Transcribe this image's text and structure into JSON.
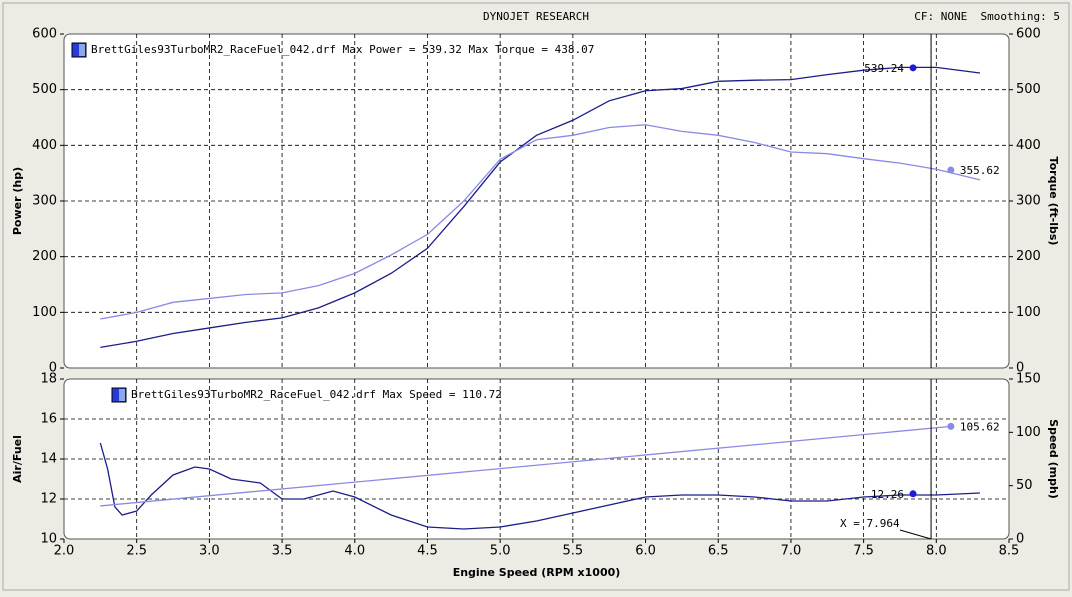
{
  "header": {
    "title": "DYNOJET RESEARCH",
    "settings": "CF: NONE  Smoothing: 5"
  },
  "chart_data": [
    {
      "type": "line",
      "legend_text": "BrettGiles93TurboMR2_RaceFuel_042.drf Max Power = 539.32 Max Torque = 438.07",
      "ylabel": "Power (hp)",
      "y2label": "Torque (ft-lbs)",
      "xlim": [
        2.0,
        8.5
      ],
      "ylim": [
        0,
        600
      ],
      "yticks": [
        0,
        100,
        200,
        300,
        400,
        500,
        600
      ],
      "y2lim": [
        0,
        600
      ],
      "y2ticks": [
        0,
        100,
        200,
        300,
        400,
        500,
        600
      ],
      "grid": true,
      "x": [
        2.25,
        2.5,
        2.75,
        3.0,
        3.25,
        3.5,
        3.75,
        4.0,
        4.25,
        4.5,
        4.75,
        5.0,
        5.25,
        5.5,
        5.75,
        6.0,
        6.25,
        6.5,
        6.75,
        7.0,
        7.25,
        7.5,
        7.75,
        8.0,
        8.3
      ],
      "series": [
        {
          "name": "Power",
          "color": "#1c1c8a",
          "values": [
            37,
            48,
            62,
            72,
            82,
            90,
            108,
            135,
            170,
            215,
            290,
            370,
            418,
            445,
            480,
            498,
            502,
            515,
            517,
            518,
            527,
            535,
            540,
            540,
            530
          ]
        },
        {
          "name": "Torque",
          "color": "#8a8ae6",
          "axis": "y2",
          "values": [
            88,
            100,
            118,
            125,
            132,
            135,
            148,
            170,
            203,
            240,
            300,
            375,
            410,
            418,
            432,
            437,
            425,
            418,
            405,
            388,
            385,
            376,
            368,
            357,
            338
          ]
        }
      ],
      "markers": [
        {
          "x": 7.84,
          "y": 539.24,
          "color": "#1c1cd0"
        },
        {
          "x": 8.1,
          "y": 355.62,
          "color": "#8a8ae6",
          "axis": "y2"
        }
      ]
    },
    {
      "type": "line",
      "legend_text": "BrettGiles93TurboMR2_RaceFuel_042.drf Max Speed = 110.72",
      "ylabel": "Air/Fuel",
      "y2label": "Speed (mph)",
      "xlabel": "Engine Speed (RPM x1000)",
      "xlim": [
        2.0,
        8.5
      ],
      "xticks": [
        {
          "value": 2.0,
          "label": "2.0"
        },
        2.5,
        {
          "value": 3.0,
          "label": "3.0"
        },
        3.5,
        {
          "value": 4.0,
          "label": "4.0"
        },
        4.5,
        {
          "value": 5.0,
          "label": "5.0"
        },
        5.5,
        {
          "value": 6.0,
          "label": "6.0"
        },
        6.5,
        {
          "value": 7.0,
          "label": "7.0"
        },
        7.5,
        {
          "value": 8.0,
          "label": "8.0"
        },
        8.5
      ],
      "ylim": [
        10,
        18
      ],
      "yticks": [
        10,
        12,
        14,
        16,
        18
      ],
      "y2lim": [
        0,
        150
      ],
      "y2ticks": [
        0,
        50,
        100,
        150
      ],
      "grid": true,
      "series": [
        {
          "name": "Air/Fuel",
          "color": "#1c1c8a",
          "x": [
            2.25,
            2.3,
            2.35,
            2.4,
            2.5,
            2.6,
            2.75,
            2.9,
            3.0,
            3.15,
            3.35,
            3.5,
            3.65,
            3.85,
            4.0,
            4.25,
            4.5,
            4.75,
            5.0,
            5.25,
            5.5,
            5.75,
            6.0,
            6.25,
            6.5,
            6.75,
            7.0,
            7.25,
            7.5,
            7.75,
            8.0,
            8.3
          ],
          "values": [
            14.8,
            13.5,
            11.6,
            11.2,
            11.4,
            12.2,
            13.2,
            13.6,
            13.5,
            13.0,
            12.8,
            12.0,
            12.0,
            12.4,
            12.1,
            11.2,
            10.6,
            10.5,
            10.6,
            10.9,
            11.3,
            11.7,
            12.1,
            12.2,
            12.2,
            12.1,
            11.9,
            11.9,
            12.1,
            12.2,
            12.2,
            12.3
          ]
        },
        {
          "name": "Speed",
          "color": "#8a8ae6",
          "axis": "y2",
          "x": [
            2.25,
            3.0,
            4.0,
            5.0,
            6.0,
            7.0,
            8.0,
            8.1
          ],
          "values": [
            31,
            40.6,
            53.3,
            66,
            78.8,
            91.5,
            104.3,
            105.62
          ]
        }
      ],
      "markers": [
        {
          "x": 7.84,
          "y": 12.26,
          "color": "#1c1cd0"
        },
        {
          "x": 8.1,
          "y": 105.62,
          "color": "#8a8ae6",
          "axis": "y2"
        }
      ],
      "cursor": {
        "value": 7.964,
        "label": "X = 7.964"
      }
    }
  ]
}
